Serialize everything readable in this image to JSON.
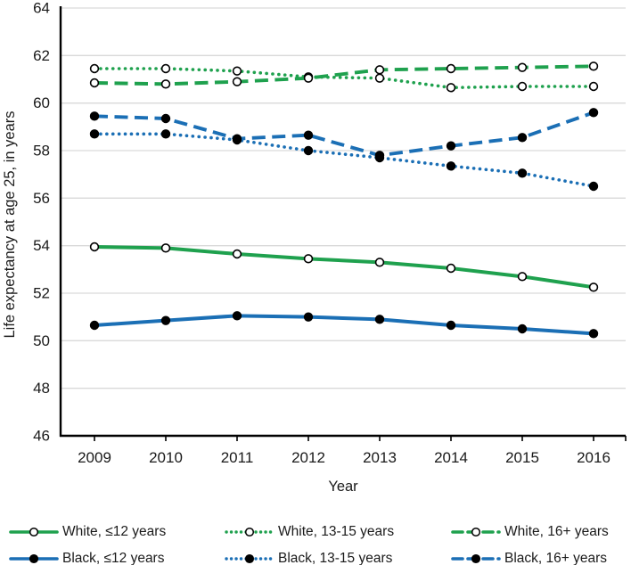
{
  "chart_data": {
    "type": "line",
    "title": "",
    "xlabel": "Year",
    "ylabel": "Life expectancy at age 25, in years",
    "x": [
      2009,
      2010,
      2011,
      2012,
      2013,
      2014,
      2015,
      2016
    ],
    "ylim": [
      46,
      64
    ],
    "yticks": [
      46,
      48,
      50,
      52,
      54,
      56,
      58,
      60,
      62,
      64
    ],
    "grid": true,
    "legend_position": "bottom",
    "series": [
      {
        "name": "White, ≤12 years",
        "color": "#1fa14e",
        "dash": "solid",
        "marker": "open",
        "values": [
          53.95,
          53.9,
          53.65,
          53.45,
          53.3,
          53.05,
          52.7,
          52.25
        ]
      },
      {
        "name": "White, 13-15 years",
        "color": "#1fa14e",
        "dash": "dotted",
        "marker": "open",
        "values": [
          61.45,
          61.45,
          61.35,
          61.1,
          61.05,
          60.65,
          60.7,
          60.7
        ]
      },
      {
        "name": "White, 16+ years",
        "color": "#1fa14e",
        "dash": "dashed",
        "marker": "open",
        "values": [
          60.85,
          60.8,
          60.9,
          61.05,
          61.4,
          61.45,
          61.5,
          61.55
        ]
      },
      {
        "name": "Black, ≤12 years",
        "color": "#1b6fb5",
        "dash": "solid",
        "marker": "filled",
        "values": [
          50.65,
          50.85,
          51.05,
          51.0,
          50.9,
          50.65,
          50.5,
          50.3
        ]
      },
      {
        "name": "Black, 13-15 years",
        "color": "#1b6fb5",
        "dash": "dotted",
        "marker": "filled",
        "values": [
          58.7,
          58.7,
          58.45,
          58.0,
          57.7,
          57.35,
          57.05,
          56.5
        ]
      },
      {
        "name": "Black, 16+ years",
        "color": "#1b6fb5",
        "dash": "dashed",
        "marker": "filled",
        "values": [
          59.45,
          59.35,
          58.5,
          58.65,
          57.8,
          58.2,
          58.55,
          59.6
        ]
      }
    ]
  },
  "colors": {
    "grid": "#d9d9d9",
    "axis": "#000000",
    "text": "#1a1a1a",
    "marker_stroke": "#000000",
    "marker_open_fill": "#ffffff",
    "background": "#ffffff"
  }
}
